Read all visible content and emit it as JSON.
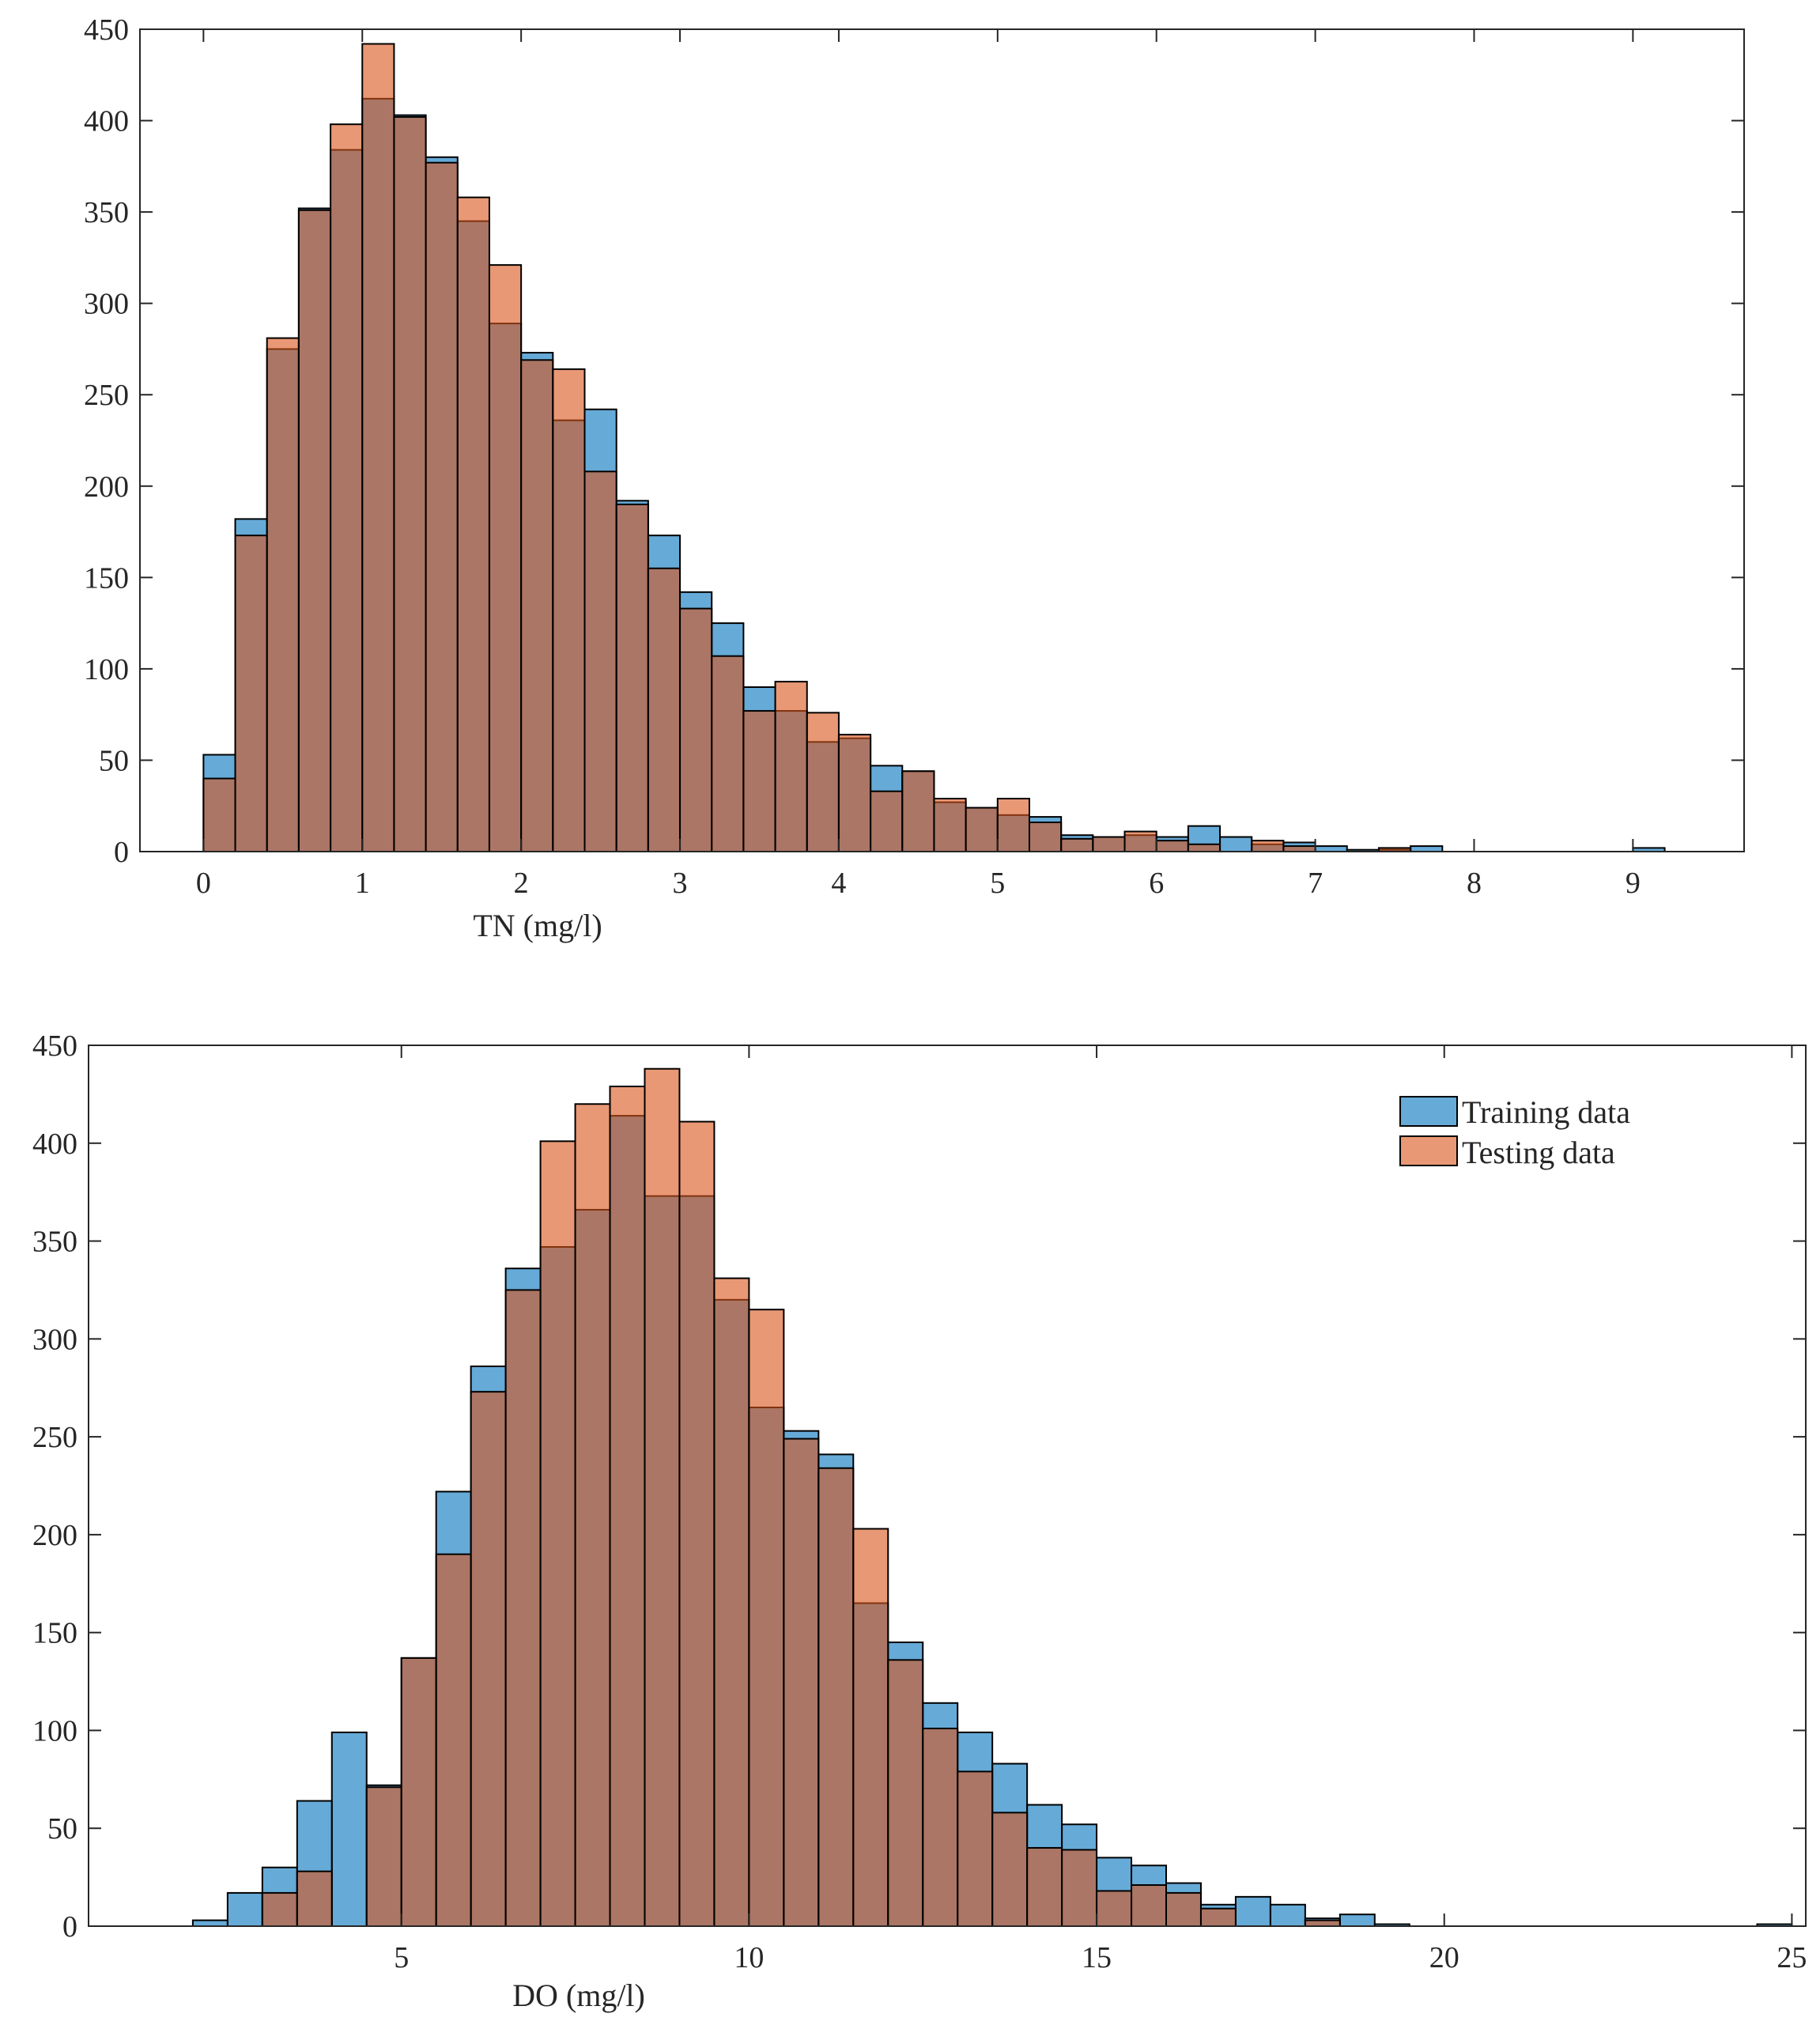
{
  "colors": {
    "training": "#0072BD",
    "testing": "#D95319",
    "axis": "#262626",
    "bar_edge": "#000000"
  },
  "legend": {
    "training_label": "Training data",
    "testing_label": "Testing data"
  },
  "chart_data": [
    {
      "type": "bar",
      "title": "",
      "xlabel": "TN   (mg/l)",
      "ylabel": "",
      "xlim": [
        -0.4,
        9.7
      ],
      "ylim": [
        0,
        450
      ],
      "xticks": [
        0,
        1,
        2,
        3,
        4,
        5,
        6,
        7,
        8,
        9
      ],
      "yticks": [
        0,
        50,
        100,
        150,
        200,
        250,
        300,
        350,
        400,
        450
      ],
      "bin_start": 0,
      "bin_width": 0.2,
      "series": [
        {
          "name": "Training data",
          "values": [
            53,
            182,
            275,
            352,
            384,
            412,
            403,
            380,
            345,
            289,
            273,
            236,
            242,
            192,
            173,
            142,
            125,
            90,
            77,
            60,
            62,
            47,
            44,
            27,
            24,
            20,
            19,
            9,
            8,
            9,
            8,
            14,
            8,
            4,
            5,
            3,
            1,
            1,
            3,
            0,
            0,
            0,
            0,
            0,
            0,
            2
          ]
        },
        {
          "name": "Testing data",
          "values": [
            40,
            173,
            281,
            351,
            398,
            442,
            402,
            377,
            358,
            321,
            269,
            264,
            208,
            190,
            155,
            133,
            107,
            77,
            93,
            76,
            64,
            33,
            44,
            29,
            24,
            29,
            16,
            7,
            8,
            11,
            6,
            4,
            0,
            6,
            3,
            0,
            0,
            2,
            0,
            0,
            0,
            0,
            0,
            0,
            0,
            0
          ]
        }
      ]
    },
    {
      "type": "bar",
      "title": "",
      "xlabel": "DO   (mg/l)",
      "ylabel": "",
      "xlim": [
        0.5,
        25.2
      ],
      "ylim": [
        0,
        450
      ],
      "xticks": [
        5,
        10,
        15,
        20,
        25
      ],
      "yticks": [
        0,
        50,
        100,
        150,
        200,
        250,
        300,
        350,
        400,
        450
      ],
      "bin_start": 2,
      "bin_width": 0.5,
      "legend_position": "top-right",
      "series": [
        {
          "name": "Training data",
          "values": [
            3,
            17,
            30,
            64,
            99,
            72,
            137,
            222,
            286,
            336,
            347,
            366,
            414,
            373,
            373,
            320,
            265,
            253,
            241,
            165,
            145,
            114,
            99,
            83,
            62,
            52,
            35,
            31,
            22,
            11,
            15,
            11,
            4,
            6,
            1,
            0,
            0,
            0,
            0,
            0,
            0,
            0,
            0,
            0,
            0,
            1
          ]
        },
        {
          "name": "Testing data",
          "values": [
            0,
            0,
            17,
            28,
            0,
            71,
            137,
            190,
            273,
            325,
            401,
            420,
            429,
            438,
            411,
            331,
            315,
            249,
            234,
            203,
            136,
            101,
            79,
            58,
            40,
            39,
            18,
            21,
            17,
            9,
            0,
            0,
            3,
            0,
            0,
            0,
            0,
            0,
            0,
            0,
            0,
            0,
            0,
            0,
            0,
            0
          ]
        }
      ]
    }
  ]
}
